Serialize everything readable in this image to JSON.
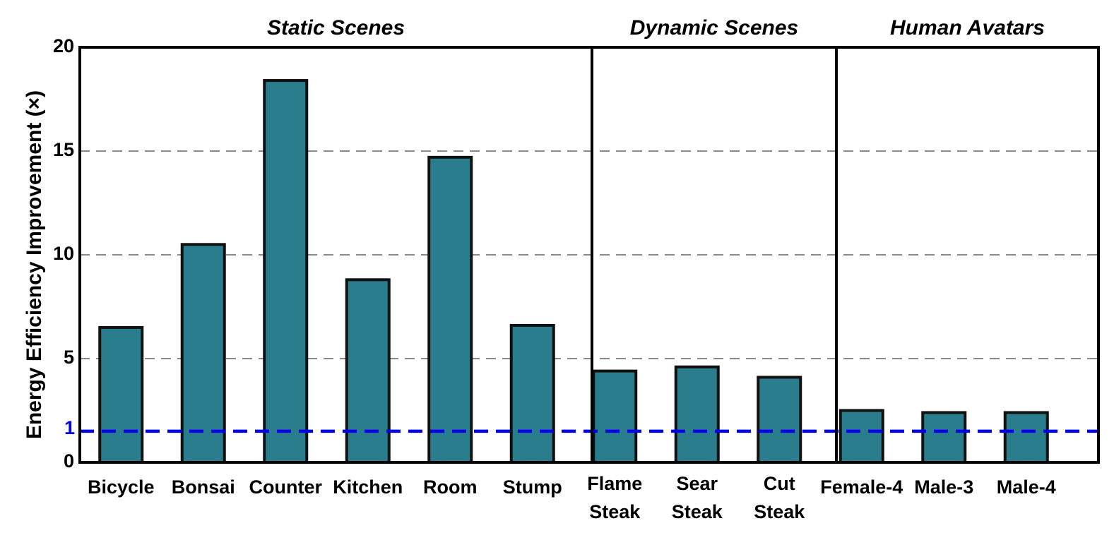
{
  "chart_data": {
    "type": "bar",
    "ylabel": "Energy Efficiency Improvement (×)",
    "xlabel": "",
    "ylim": [
      0,
      20
    ],
    "yticks": [
      0,
      5,
      10,
      15,
      20
    ],
    "grid": "horizontal dashed at 5, 10, 15",
    "groups": [
      {
        "title": "Static Scenes",
        "categories": [
          [
            "Bicycle"
          ],
          [
            "Bonsai"
          ],
          [
            "Counter"
          ],
          [
            "Kitchen"
          ],
          [
            "Room"
          ],
          [
            "Stump"
          ]
        ],
        "values": [
          6.5,
          10.5,
          18.4,
          8.8,
          14.7,
          6.6
        ]
      },
      {
        "title": "Dynamic Scenes",
        "categories": [
          [
            "Flame",
            "Steak"
          ],
          [
            "Sear",
            "Steak"
          ],
          [
            "Cut",
            "Steak"
          ]
        ],
        "values": [
          4.4,
          4.6,
          4.1
        ]
      },
      {
        "title": "Human Avatars",
        "categories": [
          [
            "Female-4"
          ],
          [
            "Male-3"
          ],
          [
            "Male-4"
          ]
        ],
        "values": [
          2.5,
          2.4,
          2.4
        ]
      }
    ],
    "reference_line": {
      "value": 1.5,
      "label": "1",
      "color": "#0000ee"
    },
    "colors": {
      "bar": "#2a7d8c",
      "bar_edge": "#111111",
      "grid": "#8a8a8a",
      "frame": "#000000"
    }
  }
}
